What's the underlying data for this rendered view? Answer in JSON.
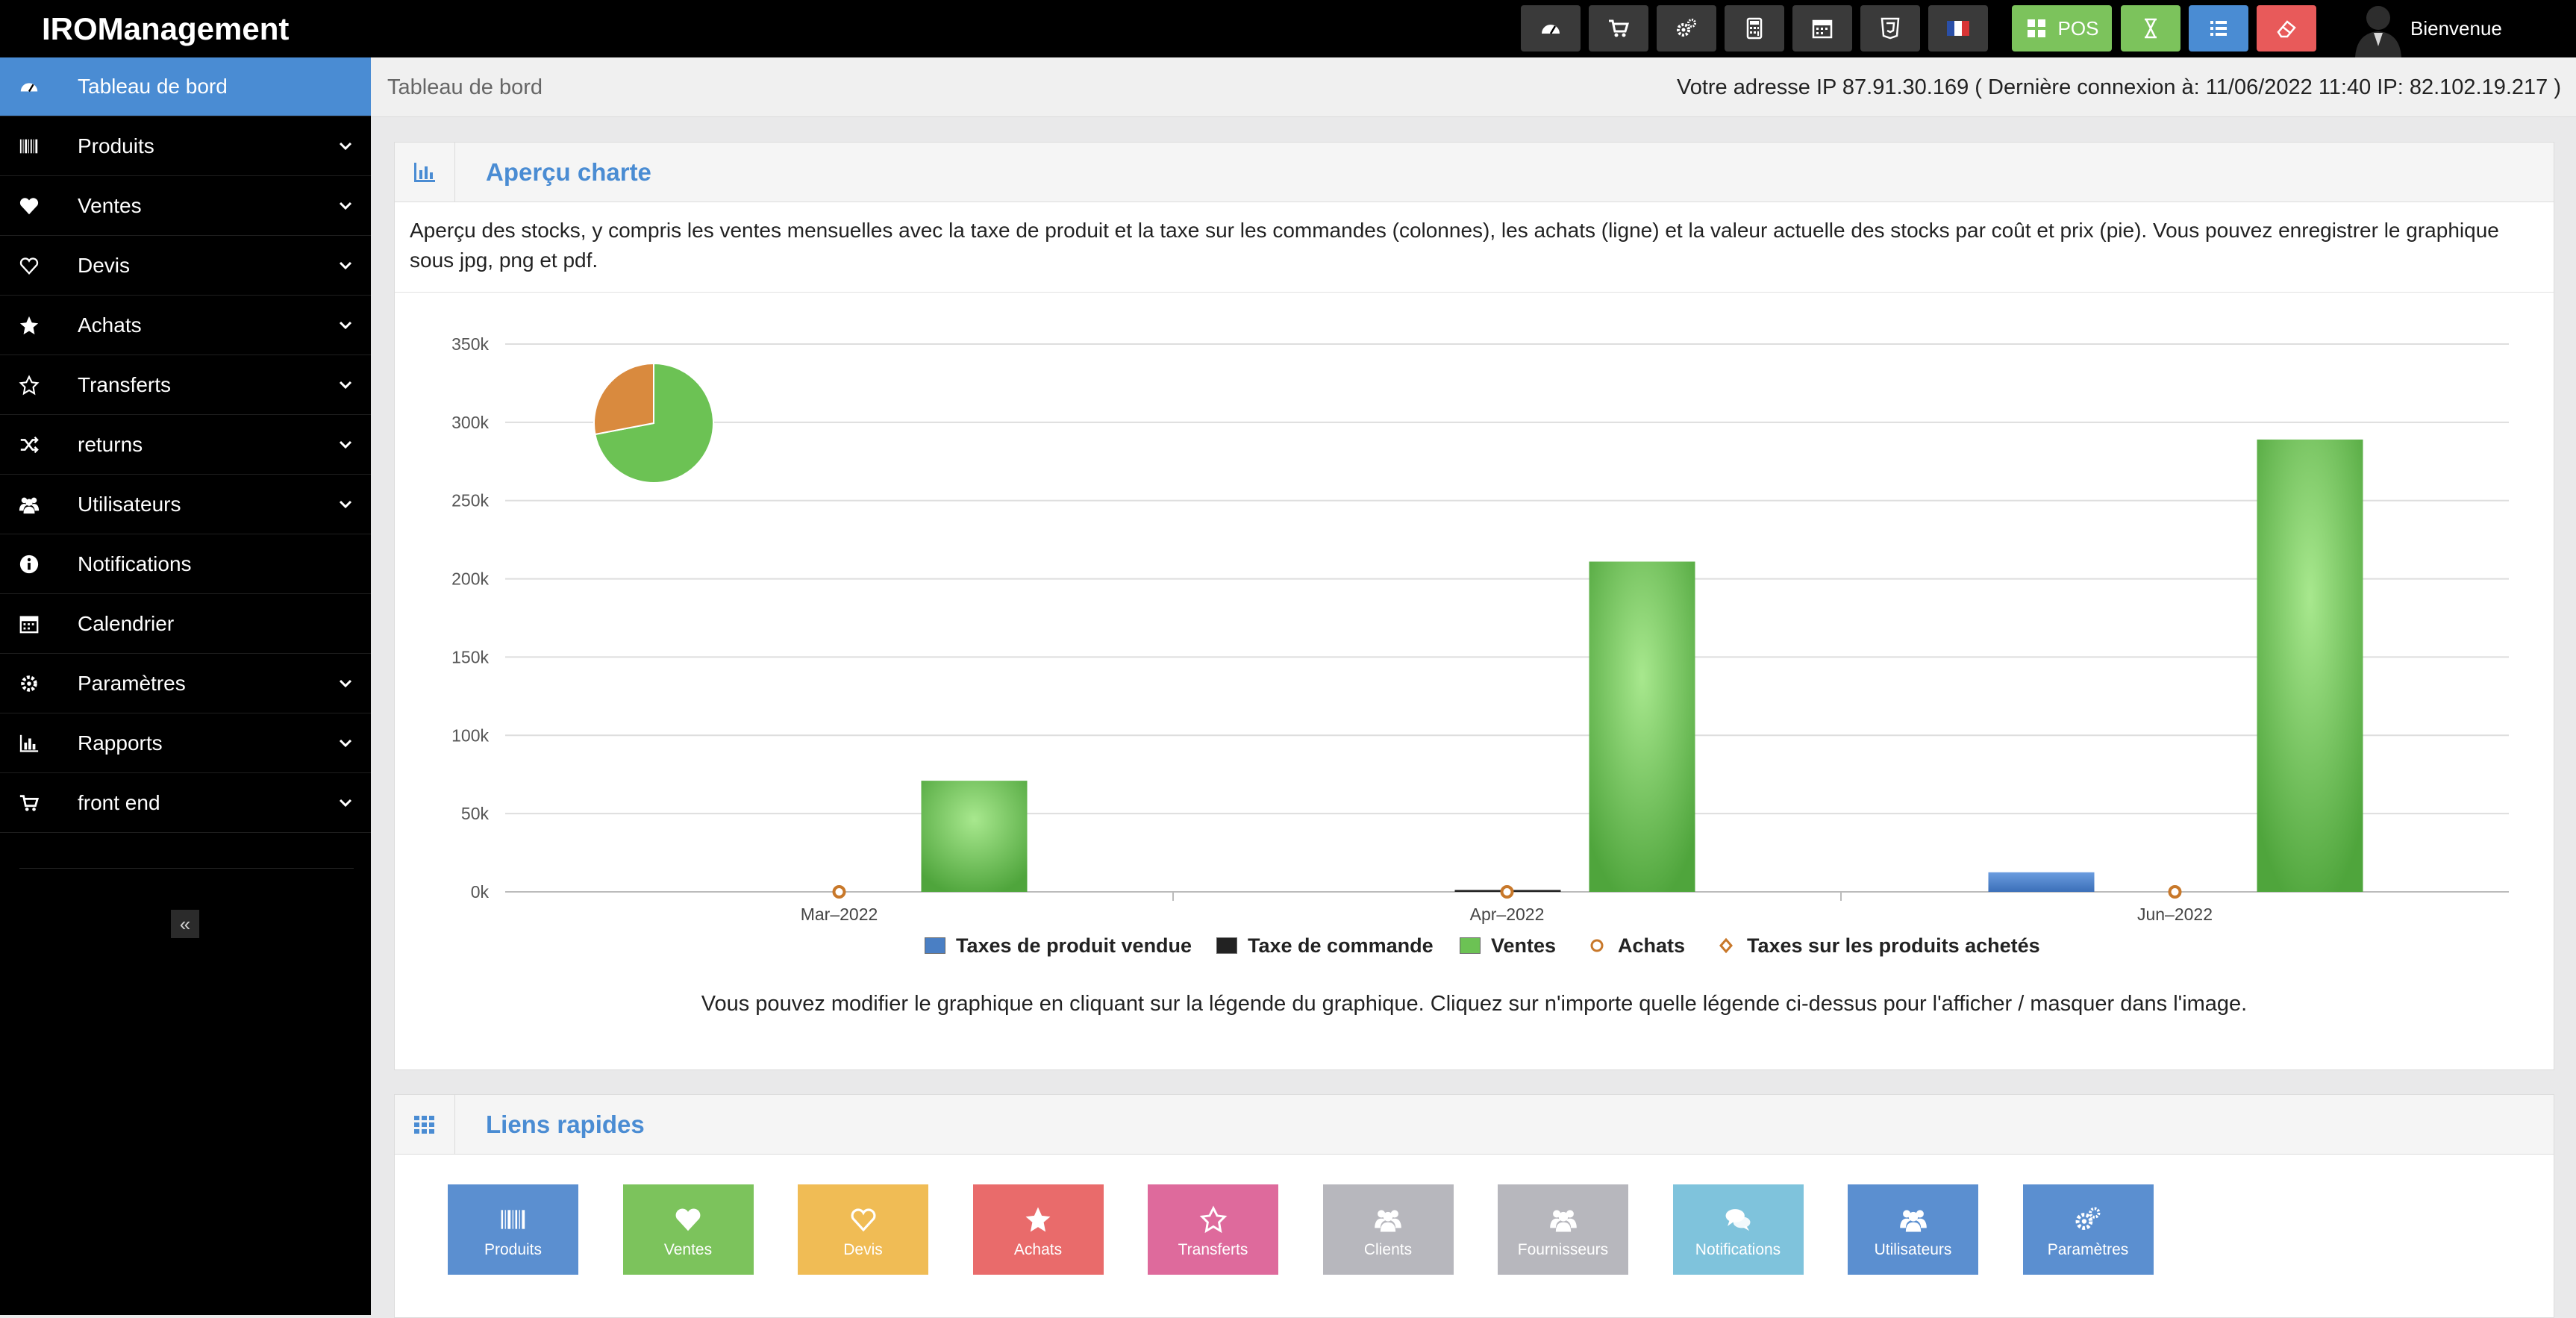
{
  "app": {
    "brand": "IROManagement",
    "welcome": "Bienvenue"
  },
  "toolbar": {
    "buttons": [
      {
        "icon": "dashboard-icon",
        "color": "#3a3a3a"
      },
      {
        "icon": "cart-icon",
        "color": "#3a3a3a"
      },
      {
        "icon": "gears-icon",
        "color": "#3a3a3a"
      },
      {
        "icon": "calculator-icon",
        "color": "#3a3a3a"
      },
      {
        "icon": "calendar-icon",
        "color": "#3a3a3a"
      },
      {
        "icon": "html5-icon",
        "color": "#3a3a3a"
      },
      {
        "icon": "french-flag-icon",
        "color": "#3a3a3a"
      },
      {
        "icon": "pos-grid-icon",
        "label": "POS",
        "color": "#7cc35c"
      },
      {
        "icon": "hourglass-icon",
        "color": "#7cc35c"
      },
      {
        "icon": "list-icon",
        "color": "#4a8cd3"
      },
      {
        "icon": "eraser-icon",
        "color": "#e85a5a"
      }
    ]
  },
  "sidebar": {
    "items": [
      {
        "label": "Tableau de bord",
        "icon": "dashboard-icon",
        "submenu": false,
        "active": true
      },
      {
        "label": "Produits",
        "icon": "barcode-icon",
        "submenu": true
      },
      {
        "label": "Ventes",
        "icon": "heart-icon",
        "submenu": true
      },
      {
        "label": "Devis",
        "icon": "heart-outline-icon",
        "submenu": true
      },
      {
        "label": "Achats",
        "icon": "star-icon",
        "submenu": true
      },
      {
        "label": "Transferts",
        "icon": "star-outline-icon",
        "submenu": true
      },
      {
        "label": "returns",
        "icon": "random-icon",
        "submenu": true
      },
      {
        "label": "Utilisateurs",
        "icon": "users-icon",
        "submenu": true
      },
      {
        "label": "Notifications",
        "icon": "info-icon",
        "submenu": false
      },
      {
        "label": "Calendrier",
        "icon": "calendar-icon",
        "submenu": false
      },
      {
        "label": "Paramètres",
        "icon": "gear-icon",
        "submenu": true
      },
      {
        "label": "Rapports",
        "icon": "bar-chart-icon",
        "submenu": true
      },
      {
        "label": "front end",
        "icon": "cart-icon",
        "submenu": true
      }
    ],
    "collapse_glyph": "«"
  },
  "breadcrumb": {
    "label": "Tableau de bord"
  },
  "ip_info": "Votre adresse IP 87.91.30.169 ( Dernière connexion à: 11/06/2022 11:40 IP: 82.102.19.217 )",
  "chart_panel": {
    "title": "Aperçu charte",
    "description": "Aperçu des stocks, y compris les ventes mensuelles avec la taxe de produit et la taxe sur les commandes (colonnes), les achats (ligne) et la valeur actuelle des stocks par coût et prix (pie). Vous pouvez enregistrer le graphique sous jpg, png et pdf.",
    "note": "Vous pouvez modifier le graphique en cliquant sur la légende du graphique. Cliquez sur n'importe quelle légende ci-dessus pour l'afficher / masquer dans l'image."
  },
  "chart_data": {
    "type": "bar",
    "categories": [
      "Mar–2022",
      "Apr–2022",
      "Jun–2022"
    ],
    "ylim": [
      0,
      350000
    ],
    "yticks": [
      0,
      50000,
      100000,
      150000,
      200000,
      250000,
      300000,
      350000
    ],
    "ytick_labels": [
      "0k",
      "50k",
      "100k",
      "150k",
      "200k",
      "250k",
      "300k",
      "350k"
    ],
    "grid": true,
    "legend_position": "bottom",
    "series": [
      {
        "name": "Taxes de produit vendue",
        "kind": "column",
        "color": "#4a7fc4",
        "values": [
          0,
          0,
          12500
        ]
      },
      {
        "name": "Taxe de commande",
        "kind": "column",
        "color": "#222222",
        "values": [
          0,
          1200,
          0
        ]
      },
      {
        "name": "Ventes",
        "kind": "column",
        "color": "#6cc254",
        "values": [
          71000,
          211000,
          289000
        ]
      },
      {
        "name": "Achats",
        "kind": "line",
        "color": "#c8782a",
        "values": [
          0,
          0,
          0
        ]
      },
      {
        "name": "Taxes sur les produits achetés",
        "kind": "line",
        "color": "#c8782a",
        "values": [
          0,
          0,
          0
        ]
      }
    ],
    "pie": {
      "slices": [
        {
          "value": 0.72,
          "color": "#6cc254"
        },
        {
          "value": 0.28,
          "color": "#d98a3e"
        }
      ]
    }
  },
  "links_panel": {
    "title": "Liens rapides",
    "links": [
      {
        "label": "Produits",
        "icon": "barcode-icon",
        "color": "#5b8fd0"
      },
      {
        "label": "Ventes",
        "icon": "heart-icon",
        "color": "#7cc35c"
      },
      {
        "label": "Devis",
        "icon": "heart-outline-icon",
        "color": "#f0bc55"
      },
      {
        "label": "Achats",
        "icon": "star-icon",
        "color": "#e96b6b"
      },
      {
        "label": "Transferts",
        "icon": "star-outline-icon",
        "color": "#de6a9c"
      },
      {
        "label": "Clients",
        "icon": "users-icon",
        "color": "#b7b7bd"
      },
      {
        "label": "Fournisseurs",
        "icon": "users-icon",
        "color": "#b7b7bd"
      },
      {
        "label": "Notifications",
        "icon": "comments-icon",
        "color": "#7fc3dc"
      },
      {
        "label": "Utilisateurs",
        "icon": "users-icon",
        "color": "#5b8fd0"
      },
      {
        "label": "Paramètres",
        "icon": "gears-icon",
        "color": "#5b8fd0"
      }
    ]
  }
}
